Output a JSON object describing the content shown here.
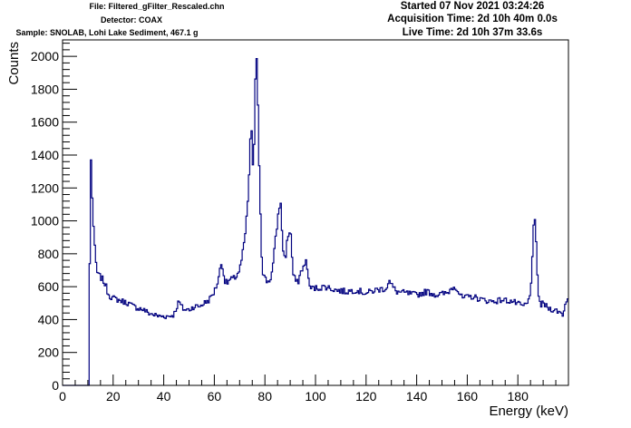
{
  "header": {
    "file": "File: Filtered_gFilter_Rescaled.chn",
    "detector": "Detector: COAX",
    "sample": "Sample: SNOLAB, Lohi Lake Sediment, 467.1 g",
    "started": "Started 07 Nov 2021 03:24:26",
    "acquisition_time": "Acquisition Time: 2d 10h 40m 0.0s",
    "live_time": "Live Time: 2d 10h 37m 33.6s"
  },
  "colors": {
    "line": "#00007f",
    "frame": "#000000",
    "background": "#ffffff"
  },
  "chart_data": {
    "type": "line",
    "style": "step",
    "title": "",
    "xlabel": "Energy (keV)",
    "ylabel": "Counts",
    "xlim": [
      0,
      200
    ],
    "ylim": [
      0,
      2100
    ],
    "xticks": [
      0,
      20,
      40,
      60,
      80,
      100,
      120,
      140,
      160,
      180
    ],
    "yticks": [
      0,
      200,
      400,
      600,
      800,
      1000,
      1200,
      1400,
      1600,
      1800,
      2000
    ],
    "grid": false,
    "legend": "none",
    "series": [
      {
        "name": "",
        "x": [
          0,
          10.5,
          11,
          11.5,
          12,
          12.5,
          13,
          13.5,
          14,
          15,
          16,
          17,
          18,
          19,
          20,
          22,
          24,
          26,
          28,
          30,
          32,
          34,
          36,
          38,
          40,
          42,
          44,
          45,
          46,
          47,
          48,
          50,
          52,
          54,
          56,
          58,
          60,
          61,
          62,
          63,
          64,
          65,
          66,
          68,
          70,
          71,
          72,
          73,
          74,
          74.5,
          75,
          75.5,
          76,
          76.5,
          77,
          77.5,
          78,
          78.5,
          79,
          80,
          81,
          82,
          83,
          84,
          85,
          86,
          86.5,
          87,
          87.5,
          88,
          89,
          90,
          90.5,
          91,
          92,
          93,
          94,
          95,
          96,
          96.5,
          97,
          98,
          100,
          104,
          108,
          112,
          116,
          120,
          124,
          128,
          129,
          130,
          132,
          136,
          140,
          144,
          148,
          152,
          155,
          158,
          162,
          166,
          170,
          174,
          178,
          182,
          184,
          185,
          186,
          186.5,
          187,
          187.5,
          188,
          189,
          190,
          192,
          194,
          196,
          198,
          199,
          200
        ],
        "values": [
          0,
          0,
          1480,
          1250,
          1050,
          880,
          780,
          700,
          670,
          660,
          640,
          610,
          560,
          540,
          530,
          520,
          510,
          500,
          480,
          470,
          460,
          440,
          430,
          420,
          420,
          420,
          430,
          470,
          510,
          480,
          460,
          460,
          480,
          480,
          500,
          520,
          570,
          610,
          680,
          760,
          640,
          620,
          640,
          650,
          700,
          780,
          880,
          1050,
          1350,
          1600,
          1500,
          1200,
          1700,
          1970,
          1950,
          1500,
          1200,
          900,
          700,
          650,
          630,
          640,
          700,
          850,
          1000,
          1130,
          1050,
          850,
          800,
          760,
          900,
          950,
          880,
          680,
          640,
          620,
          680,
          720,
          720,
          800,
          650,
          590,
          590,
          600,
          580,
          570,
          580,
          560,
          580,
          590,
          640,
          610,
          570,
          560,
          550,
          570,
          550,
          560,
          610,
          530,
          540,
          520,
          510,
          520,
          510,
          480,
          500,
          560,
          870,
          1030,
          950,
          750,
          580,
          480,
          500,
          470,
          460,
          450,
          430,
          520,
          520
        ]
      }
    ]
  }
}
